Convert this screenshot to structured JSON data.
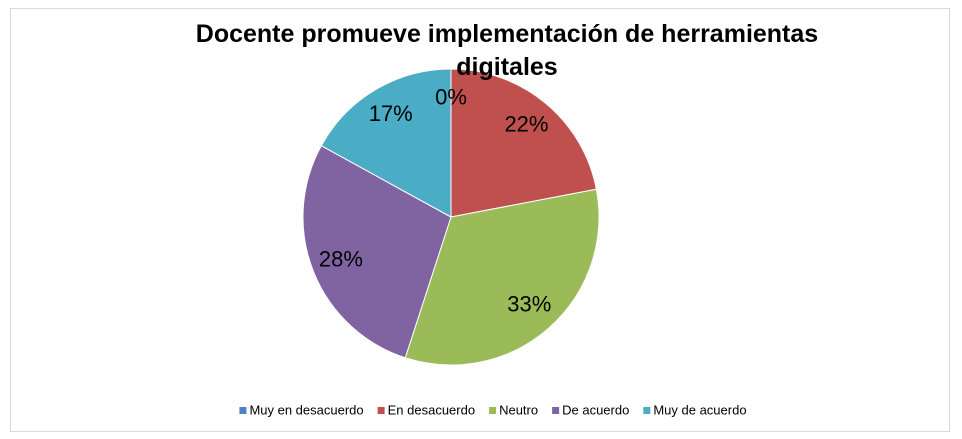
{
  "chart_data": {
    "type": "pie",
    "title": "Docente promueve implementación de herramientas digitales",
    "categories": [
      "Muy en desacuerdo",
      "En desacuerdo",
      "Neutro",
      "De acuerdo",
      "Muy de acuerdo"
    ],
    "values": [
      0,
      22,
      33,
      28,
      17
    ],
    "value_labels": [
      "0%",
      "22%",
      "33%",
      "28%",
      "17%"
    ],
    "colors": [
      "#4f81bd",
      "#c0504d",
      "#9bbb59",
      "#8064a2",
      "#4bacc6"
    ],
    "legend": "bottom"
  }
}
